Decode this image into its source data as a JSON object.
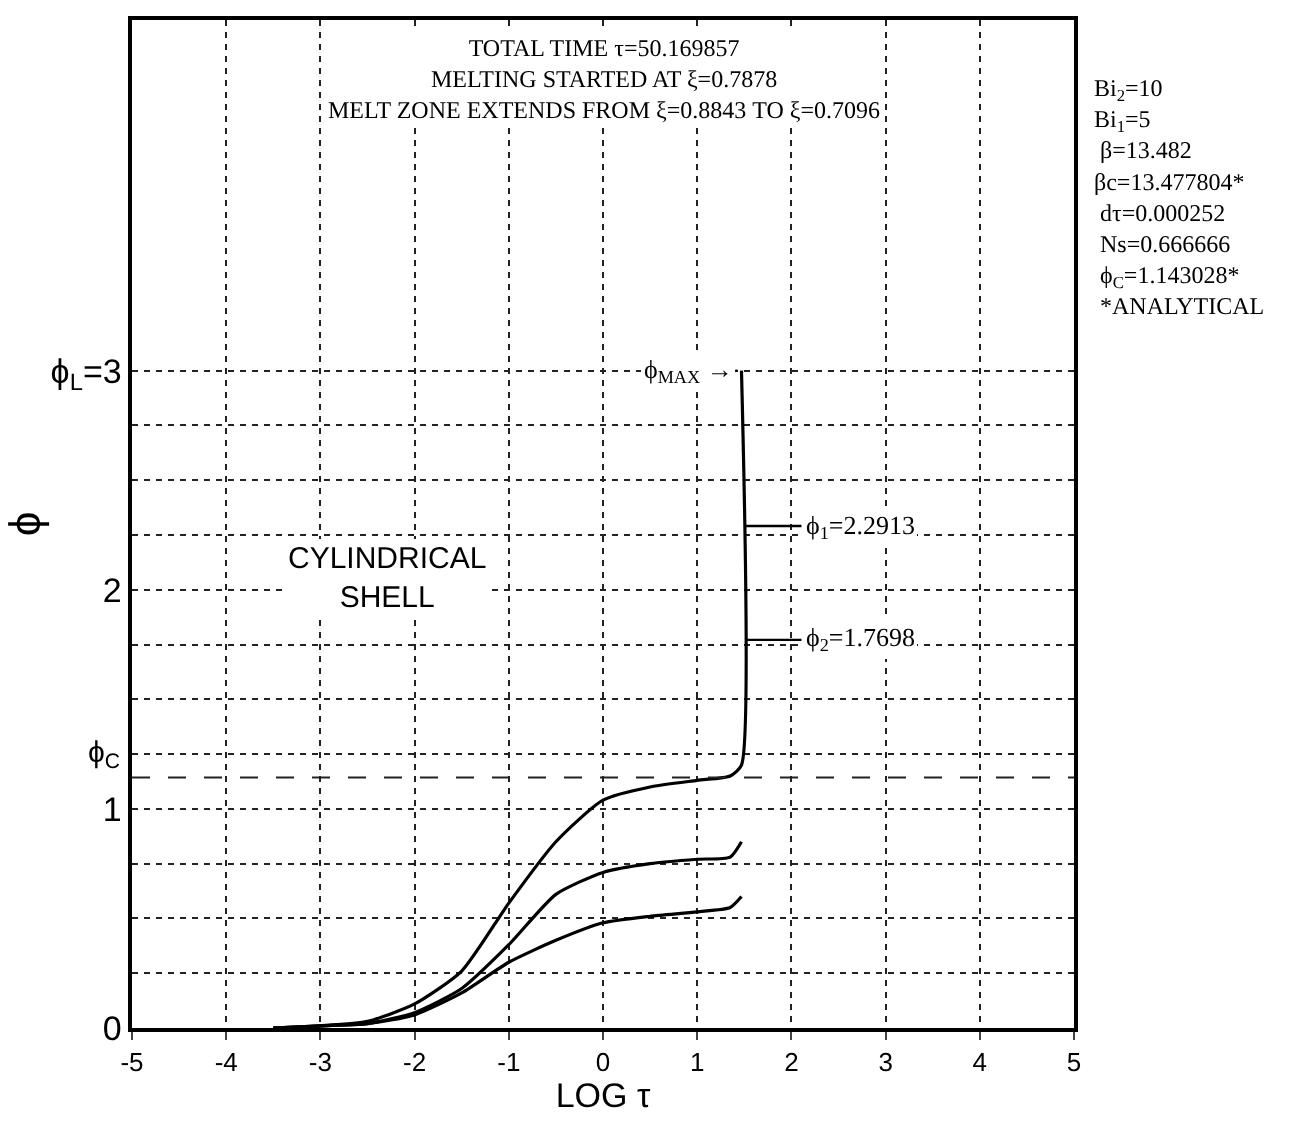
{
  "chart_data": {
    "type": "line",
    "title": "TOTAL TIME τ=50.169857\nMELTING STARTED AT ξ=0.7878\nMELT ZONE EXTENDS FROM ξ=0.8843 TO ξ=0.7096",
    "xlabel": "LOG τ",
    "ylabel": "ϕ",
    "x": [
      -3.5,
      -3,
      -2.5,
      -2,
      -1.5,
      -1,
      -0.5,
      0,
      0.5,
      1,
      1.35,
      1.47,
      1.47
    ],
    "series": [
      {
        "color": "#000000",
        "values": [
          0,
          0.01,
          0.03,
          0.11,
          0.26,
          0.57,
          0.85,
          1.04,
          1.1,
          1.13,
          1.15,
          1.2,
          3
        ]
      },
      {
        "color": "#000000",
        "values": [
          0,
          0.01,
          0.02,
          0.07,
          0.18,
          0.38,
          0.61,
          0.71,
          0.75,
          0.77,
          0.78,
          0.85,
          null
        ]
      },
      {
        "color": "#000000",
        "values": [
          0,
          0.01,
          0.02,
          0.06,
          0.16,
          0.3,
          0.4,
          0.48,
          0.51,
          0.53,
          0.55,
          0.6,
          null
        ]
      }
    ],
    "xlim": [
      -5,
      5
    ],
    "xticks": [
      -5,
      -4,
      -3,
      -2,
      -1,
      0,
      1,
      2,
      3,
      4,
      5
    ],
    "ylim": [
      0,
      4.6
    ],
    "yticks": [
      0,
      {
        "value": 0.25,
        "label": null
      },
      {
        "value": 0.5,
        "label": null
      },
      {
        "value": 0.75,
        "label": null
      },
      1,
      {
        "value": 1.25,
        "label": null
      },
      {
        "value": 1.5,
        "label": null
      },
      {
        "value": 1.75,
        "label": null
      },
      2,
      {
        "value": 2.25,
        "label": null
      },
      {
        "value": 2.5,
        "label": null
      },
      {
        "value": 2.75,
        "label": null
      },
      {
        "value": 3,
        "label": "ϕ$_{L}$=3"
      }
    ],
    "ref_lines": [
      {
        "axis": "y",
        "value": 1.143028,
        "label": "ϕ$_{C}$",
        "line_style": "dashed"
      }
    ],
    "annotations": [
      "ϕ$_{MAX}$ →",
      "ϕ$_{1}$=2.2913",
      "ϕ$_{2}$=1.7698",
      "CYLINDRICAL\nSHELL",
      "Bi$_{2}$=10\nBi$_{1}$=5\n β=13.482\nβc=13.477804*\n dτ=0.000252\n Ns=0.666666\n ϕ$_{C}$=1.143028*\n *ANALYTICAL"
    ],
    "grid": true,
    "line_style": "solid",
    "marker": "none"
  }
}
